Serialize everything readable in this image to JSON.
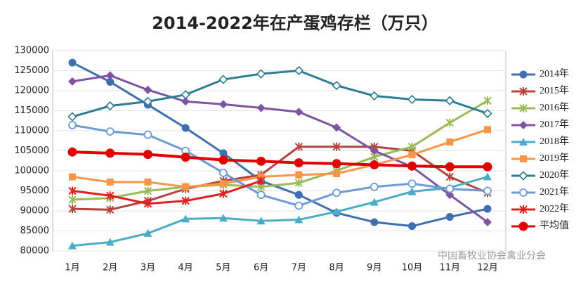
{
  "chart_data": {
    "type": "line",
    "title": "2014-2022年在产蛋鸡存栏（万只）",
    "categories": [
      "1月",
      "2月",
      "3月",
      "4月",
      "5月",
      "6月",
      "7月",
      "8月",
      "9月",
      "10月",
      "11月",
      "12月"
    ],
    "ylim": [
      80000,
      130000
    ],
    "yticks": [
      80000,
      85000,
      90000,
      95000,
      100000,
      105000,
      110000,
      115000,
      120000,
      125000,
      130000
    ],
    "grid": true,
    "legend": "right",
    "watermark": "中国畜牧业协会禽业分会",
    "series": [
      {
        "name": "2014年",
        "color": "#3f6fb0",
        "marker": "circle",
        "values": [
          127000,
          122200,
          116500,
          110700,
          104400,
          97500,
          94000,
          89500,
          87200,
          86200,
          88500,
          90500
        ]
      },
      {
        "name": "2015年",
        "color": "#b5443f",
        "marker": "x",
        "values": [
          90500,
          90300,
          92500,
          95500,
          97500,
          99000,
          106000,
          106000,
          106000,
          105000,
          98500,
          94500
        ]
      },
      {
        "name": "2016年",
        "color": "#9bbb59",
        "marker": "x",
        "values": [
          92800,
          93200,
          95000,
          96000,
          96500,
          96000,
          97000,
          100000,
          103500,
          106000,
          112000,
          117500
        ]
      },
      {
        "name": "2017年",
        "color": "#7f54a0",
        "marker": "diamond",
        "values": [
          122300,
          123800,
          120200,
          117300,
          116600,
          115700,
          114700,
          110800,
          105000,
          101000,
          94000,
          87200
        ]
      },
      {
        "name": "2018年",
        "color": "#4bacc6",
        "marker": "triangle",
        "values": [
          81300,
          82200,
          84400,
          88000,
          88200,
          87500,
          87800,
          89800,
          92200,
          94800,
          95800,
          98500
        ]
      },
      {
        "name": "2019年",
        "color": "#f79646",
        "marker": "square",
        "values": [
          98500,
          97200,
          97200,
          96000,
          96800,
          98500,
          99000,
          99300,
          101500,
          104000,
          107200,
          110300
        ]
      },
      {
        "name": "2020年",
        "color": "#2c7c93",
        "marker": "diamond-open",
        "values": [
          113500,
          116200,
          117300,
          119000,
          122800,
          124200,
          125000,
          121300,
          118700,
          117800,
          117500,
          114300
        ]
      },
      {
        "name": "2021年",
        "color": "#6e9ad6",
        "marker": "circle-open",
        "values": [
          111400,
          109800,
          109000,
          105000,
          99500,
          94000,
          91300,
          94500,
          96000,
          96800,
          95500,
          95000
        ]
      },
      {
        "name": "2022年",
        "color": "#e02020",
        "marker": "x",
        "values": [
          95000,
          93800,
          91800,
          92500,
          94300,
          97500,
          null,
          null,
          null,
          null,
          null,
          null
        ]
      },
      {
        "name": "平均值",
        "color": "#e00000",
        "marker": "big-circle",
        "values": [
          104700,
          104400,
          104100,
          103400,
          102700,
          102400,
          102000,
          101800,
          101500,
          101200,
          101000,
          101000
        ]
      }
    ]
  }
}
